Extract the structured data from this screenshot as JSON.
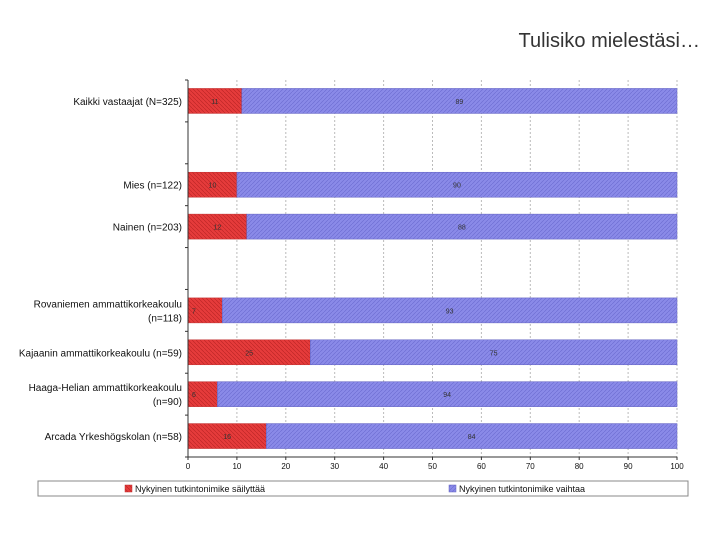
{
  "slide": {
    "title": "Tulisiko mielestäsi…"
  },
  "colors": {
    "series_keep": "#e53b3b",
    "series_change": "#8a8ae8",
    "grid": "#bbbbbb",
    "legend_border": "#888888"
  },
  "chart_data": {
    "type": "bar",
    "orientation": "horizontal",
    "stacked": true,
    "title": "Tulisiko mielestäsi…",
    "categories": [
      [
        "Kaikki vastaajat (N=325)"
      ],
      [],
      [
        "Mies (n=122)"
      ],
      [
        "Nainen (n=203)"
      ],
      [],
      [
        "Rovaniemen ammattikorkeakoulu",
        "(n=118)"
      ],
      [
        "Kajaanin ammattikorkeakoulu (n=59)"
      ],
      [
        "Haaga-Helian ammattikorkeakoulu",
        "(n=90)"
      ],
      [
        "Arcada Yrkeshögskolan (n=58)"
      ]
    ],
    "series": [
      {
        "name": "Nykyinen tutkintonimike säilyttää",
        "values": [
          11,
          null,
          10,
          12,
          null,
          7,
          25,
          6,
          16
        ],
        "value_labels": [
          "11",
          "",
          "10",
          "12",
          "",
          "7",
          "25",
          "6",
          "16"
        ]
      },
      {
        "name": "Nykyinen tutkintonimike vaihtaa",
        "values": [
          89,
          null,
          90,
          88,
          null,
          93,
          75,
          94,
          84
        ],
        "value_labels": [
          "89",
          "",
          "90",
          "88",
          "",
          "93",
          "75",
          "94",
          "84"
        ]
      }
    ],
    "xlim": [
      0,
      100
    ],
    "xticks": [
      "0",
      "10",
      "20",
      "30",
      "40",
      "50",
      "60",
      "70",
      "80",
      "90",
      "100"
    ],
    "grid": true,
    "legend": "bottom"
  }
}
